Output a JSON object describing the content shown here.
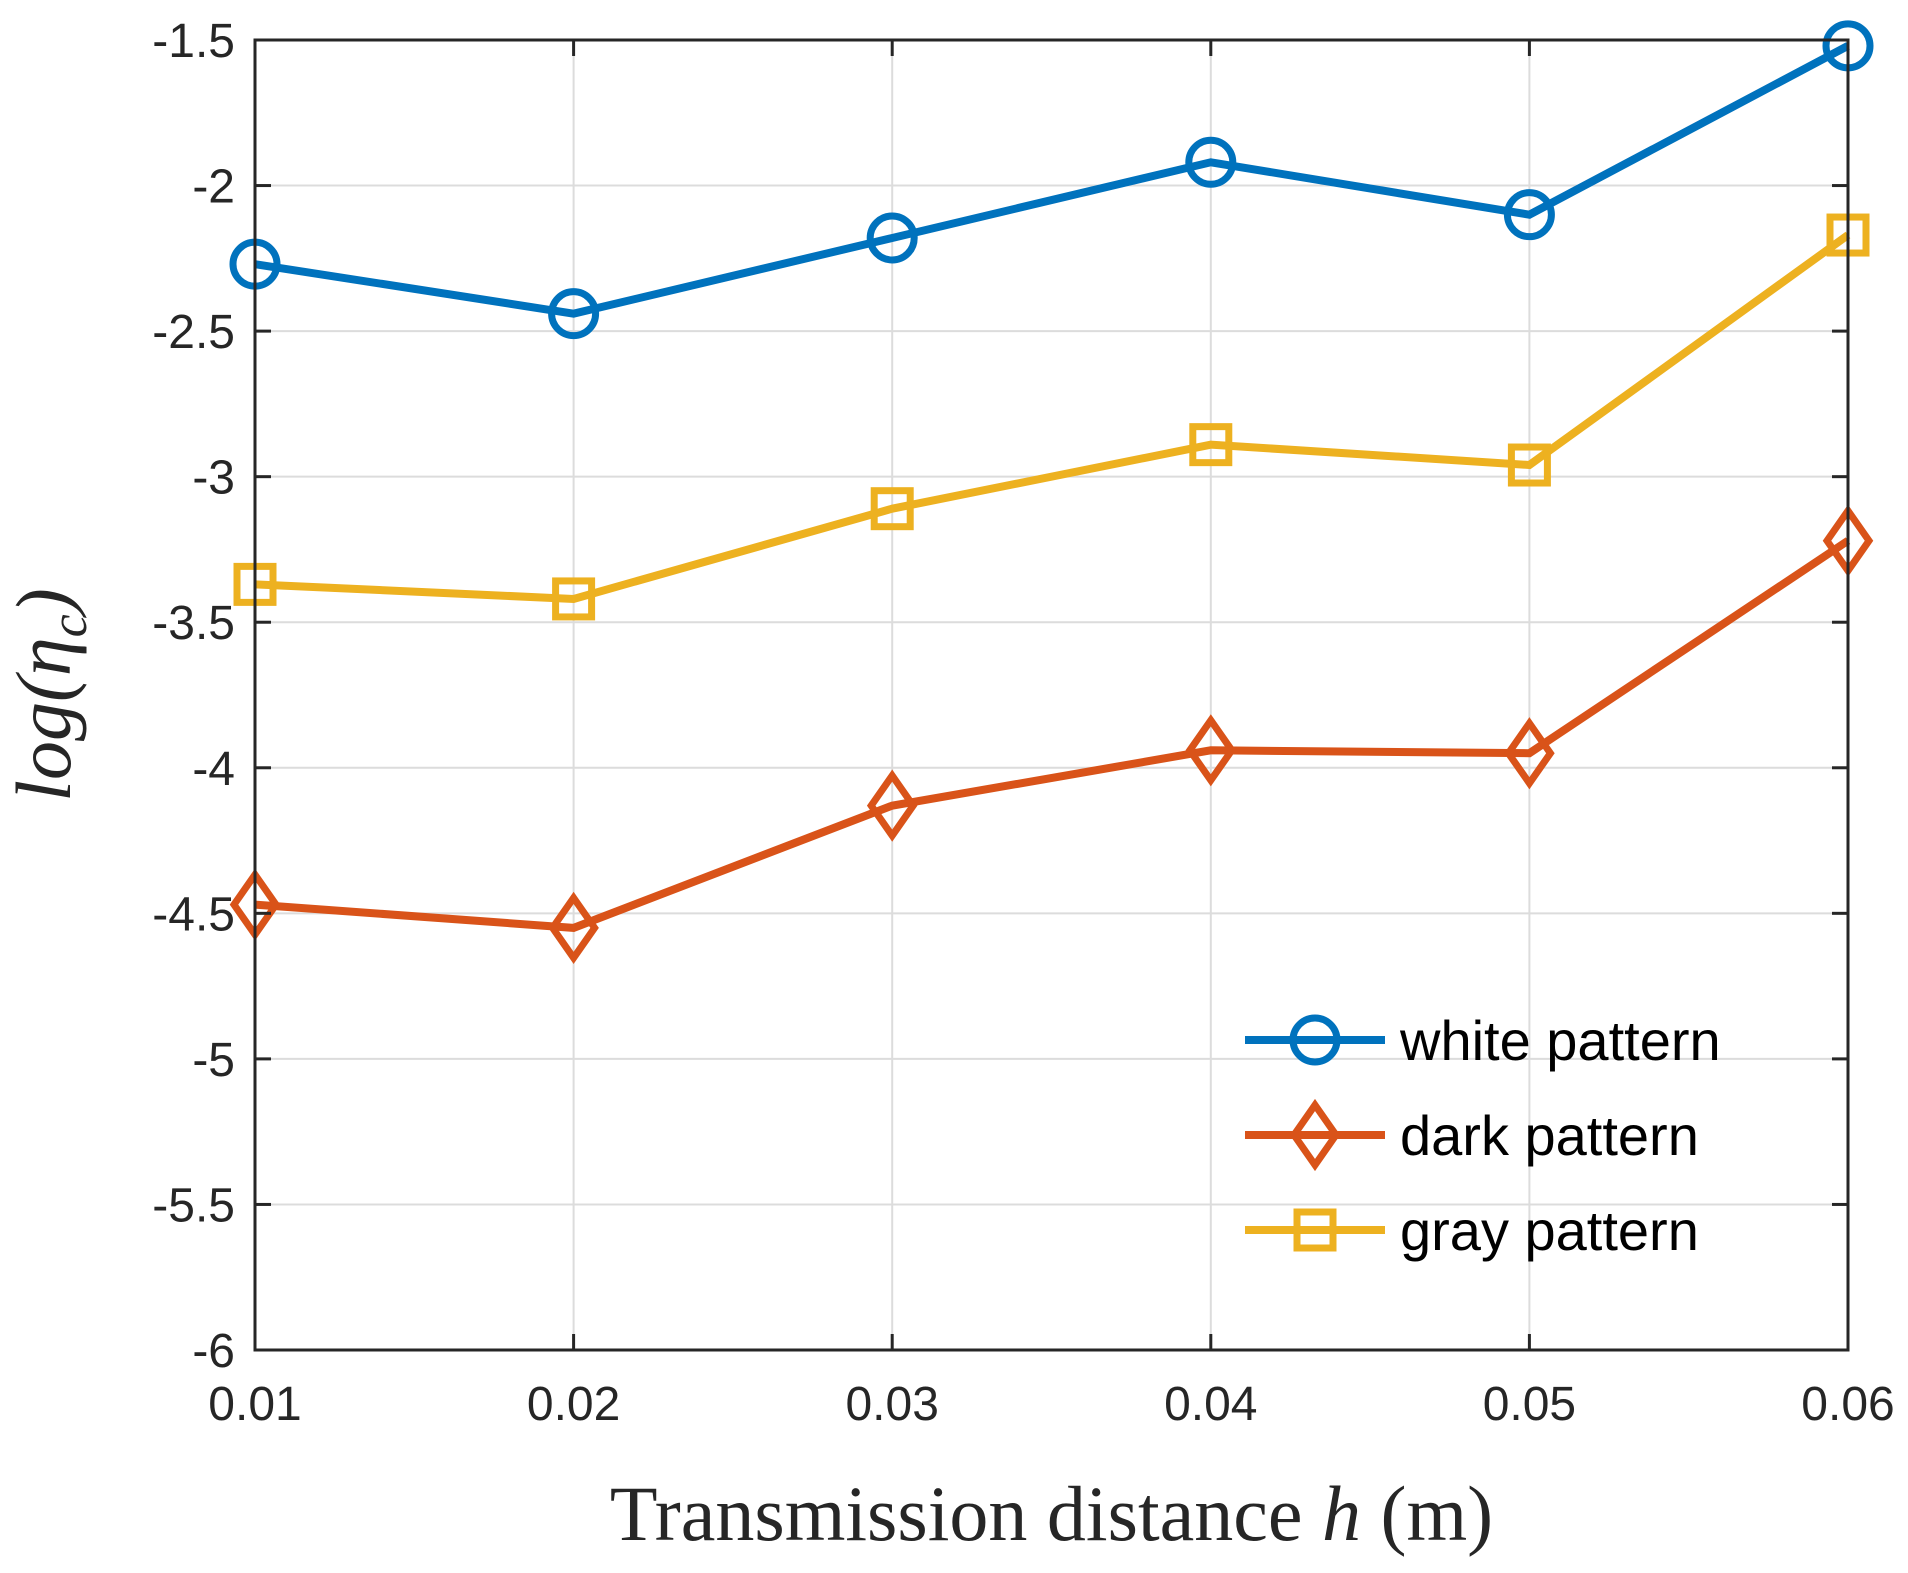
{
  "chart_data": {
    "type": "line",
    "title": "",
    "xlabel": "Transmission distance h (m)",
    "xlabel_parts": {
      "prefix": "Transmission distance ",
      "var": "h",
      "suffix": " (m)"
    },
    "ylabel": "log(η_c)",
    "ylabel_parts": {
      "func": "log",
      "sym": "η",
      "sub": "c"
    },
    "x": [
      0.01,
      0.02,
      0.03,
      0.04,
      0.05,
      0.06
    ],
    "x_tick_labels": [
      "0.01",
      "0.02",
      "0.03",
      "0.04",
      "0.05",
      "0.06"
    ],
    "y_ticks": [
      -6,
      -5.5,
      -5,
      -4.5,
      -4,
      -3.5,
      -3,
      -2.5,
      -2,
      -1.5
    ],
    "y_tick_labels": [
      "-6",
      "-5.5",
      "-5",
      "-4.5",
      "-4",
      "-3.5",
      "-3",
      "-2.5",
      "-2",
      "-1.5"
    ],
    "xlim": [
      0.01,
      0.06
    ],
    "ylim": [
      -6,
      -1.5
    ],
    "grid": true,
    "legend_position": "bottom-right",
    "series": [
      {
        "name": "white pattern",
        "marker": "circle",
        "color": "#0072BD",
        "values": [
          -2.27,
          -2.44,
          -2.18,
          -1.92,
          -2.1,
          -1.52
        ]
      },
      {
        "name": "dark pattern",
        "marker": "diamond",
        "color": "#D95319",
        "values": [
          -4.47,
          -4.55,
          -4.13,
          -3.94,
          -3.95,
          -3.22
        ]
      },
      {
        "name": "gray pattern",
        "marker": "square",
        "color": "#EDB120",
        "values": [
          -3.37,
          -3.42,
          -3.11,
          -2.89,
          -2.96,
          -2.17
        ]
      }
    ]
  }
}
